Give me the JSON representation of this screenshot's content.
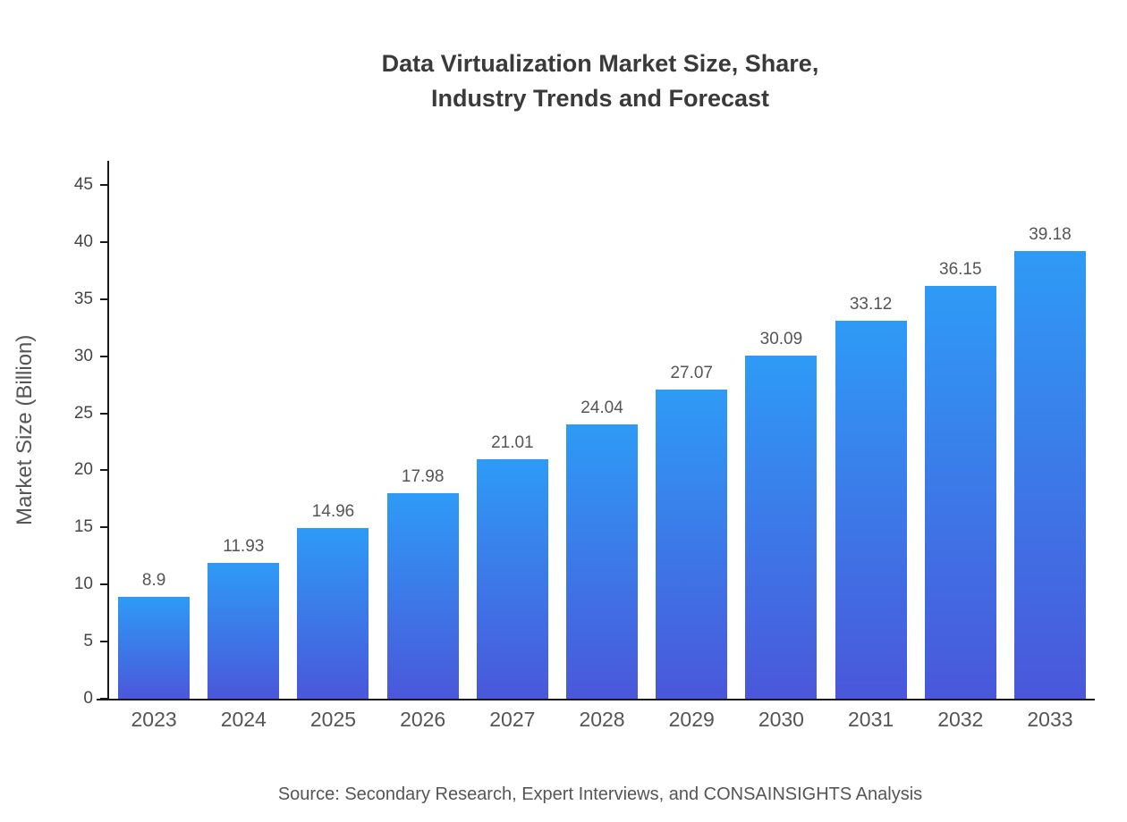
{
  "title": "Data Virtualization Market Size, Share,\nIndustry Trends and Forecast",
  "source": "Source: Secondary Research, Expert Interviews, and CONSAINSIGHTS Analysis",
  "chart_data": {
    "type": "bar",
    "title": "Data Virtualization Market Size, Share, Industry Trends and Forecast",
    "xlabel": "",
    "ylabel": "Market Size (Billion)",
    "categories": [
      "2023",
      "2024",
      "2025",
      "2026",
      "2027",
      "2028",
      "2029",
      "2030",
      "2031",
      "2032",
      "2033"
    ],
    "values": [
      8.9,
      11.93,
      14.96,
      17.98,
      21.01,
      24.04,
      27.07,
      30.09,
      33.12,
      36.15,
      39.18
    ],
    "value_labels": [
      "8.9",
      "11.93",
      "14.96",
      "17.98",
      "21.01",
      "24.04",
      "27.07",
      "30.09",
      "33.12",
      "36.15",
      "39.18"
    ],
    "yticks": [
      0,
      5,
      10,
      15,
      20,
      25,
      30,
      35,
      40,
      45
    ],
    "ylim": [
      0,
      47
    ],
    "grid": false,
    "legend": false,
    "bar_gradient_top": "#2e9bf6",
    "bar_gradient_bottom": "#4a57da",
    "axis_color": "#1a1a1a",
    "label_color": "#555555"
  }
}
